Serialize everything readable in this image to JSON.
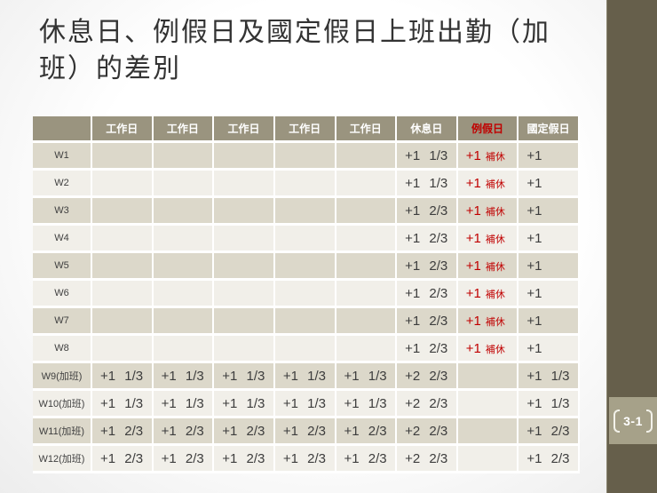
{
  "title_lines": [
    "休息日、例假日及國定假日上班出勤（加",
    "班）的差別"
  ],
  "page_badge": "3-1",
  "table": {
    "column_headers": [
      "",
      "工作日",
      "工作日",
      "工作日",
      "工作日",
      "工作日",
      "休息日",
      "例假日",
      "國定假日"
    ],
    "red_header_index": 7,
    "rows": [
      {
        "label": "W1",
        "workdays": [
          "",
          "",
          "",
          "",
          ""
        ],
        "rest_day": "+1 1/3",
        "regular_holiday": {
          "main": "+1",
          "note": "補休"
        },
        "national_holiday": "+1"
      },
      {
        "label": "W2",
        "workdays": [
          "",
          "",
          "",
          "",
          ""
        ],
        "rest_day": "+1 1/3",
        "regular_holiday": {
          "main": "+1",
          "note": "補休"
        },
        "national_holiday": "+1"
      },
      {
        "label": "W3",
        "workdays": [
          "",
          "",
          "",
          "",
          ""
        ],
        "rest_day": "+1 2/3",
        "regular_holiday": {
          "main": "+1",
          "note": "補休"
        },
        "national_holiday": "+1"
      },
      {
        "label": "W4",
        "workdays": [
          "",
          "",
          "",
          "",
          ""
        ],
        "rest_day": "+1 2/3",
        "regular_holiday": {
          "main": "+1",
          "note": "補休"
        },
        "national_holiday": "+1"
      },
      {
        "label": "W5",
        "workdays": [
          "",
          "",
          "",
          "",
          ""
        ],
        "rest_day": "+1 2/3",
        "regular_holiday": {
          "main": "+1",
          "note": "補休"
        },
        "national_holiday": "+1"
      },
      {
        "label": "W6",
        "workdays": [
          "",
          "",
          "",
          "",
          ""
        ],
        "rest_day": "+1 2/3",
        "regular_holiday": {
          "main": "+1",
          "note": "補休"
        },
        "national_holiday": "+1"
      },
      {
        "label": "W7",
        "workdays": [
          "",
          "",
          "",
          "",
          ""
        ],
        "rest_day": "+1 2/3",
        "regular_holiday": {
          "main": "+1",
          "note": "補休"
        },
        "national_holiday": "+1"
      },
      {
        "label": "W8",
        "workdays": [
          "",
          "",
          "",
          "",
          ""
        ],
        "rest_day": "+1 2/3",
        "regular_holiday": {
          "main": "+1",
          "note": "補休"
        },
        "national_holiday": "+1"
      },
      {
        "label": "W9(加班)",
        "workdays": [
          "+1 1/3",
          "+1 1/3",
          "+1 1/3",
          "+1 1/3",
          "+1 1/3"
        ],
        "rest_day": "+2 2/3",
        "regular_holiday": {
          "main": "",
          "note": ""
        },
        "national_holiday": "+1 1/3"
      },
      {
        "label": "W10(加班)",
        "workdays": [
          "+1 1/3",
          "+1 1/3",
          "+1 1/3",
          "+1 1/3",
          "+1 1/3"
        ],
        "rest_day": "+2 2/3",
        "regular_holiday": {
          "main": "",
          "note": ""
        },
        "national_holiday": "+1 1/3"
      },
      {
        "label": "W11(加班)",
        "workdays": [
          "+1 2/3",
          "+1 2/3",
          "+1 2/3",
          "+1 2/3",
          "+1 2/3"
        ],
        "rest_day": "+2 2/3",
        "regular_holiday": {
          "main": "",
          "note": ""
        },
        "national_holiday": "+1 2/3"
      },
      {
        "label": "W12(加班)",
        "workdays": [
          "+1 2/3",
          "+1 2/3",
          "+1 2/3",
          "+1 2/3",
          "+1 2/3"
        ],
        "rest_day": "+2 2/3",
        "regular_holiday": {
          "main": "",
          "note": ""
        },
        "national_holiday": "+1 2/3"
      }
    ]
  },
  "colors": {
    "header_bg": "#9a947f",
    "row_odd_bg": "#dcd8ca",
    "row_even_bg": "#f1efe9",
    "accent_red": "#c00000",
    "sidebar_bg": "#665f4b",
    "badge_bg": "#a6a189"
  }
}
